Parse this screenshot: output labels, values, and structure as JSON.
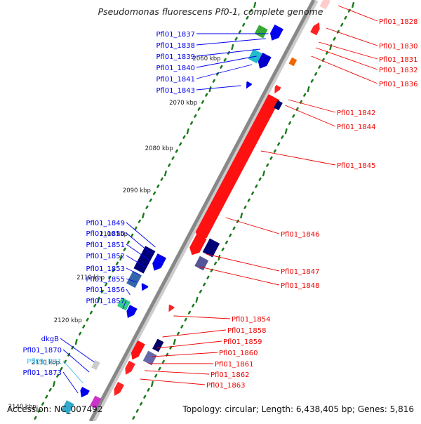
{
  "title": "Pseudomonas fluorescens Pf0-1, complete genome",
  "accession": "Accession: NC_007492",
  "summary": "Topology: circular; Length: 6,438,405 bp; Genes: 5,816",
  "colors": {
    "forward": "#0000ee",
    "reverse": "#ee0000",
    "rna": "#33bbee",
    "tick": "#1a7a1a",
    "backbone": "#888888"
  },
  "scale": [
    "2060 kbp",
    "2070 kbp",
    "2080 kbp",
    "2090 kbp",
    "2100 kbp",
    "2110 kbp",
    "2120 kbp",
    "2130 kbp",
    "2140 kbp"
  ],
  "left_labels": [
    {
      "text": "Pfl01_1837",
      "type": "forward"
    },
    {
      "text": "Pfl01_1838",
      "type": "forward"
    },
    {
      "text": "Pfl01_1839",
      "type": "forward"
    },
    {
      "text": "Pfl01_1840",
      "type": "forward"
    },
    {
      "text": "Pfl01_1841",
      "type": "forward"
    },
    {
      "text": "Pfl01_1843",
      "type": "forward"
    },
    {
      "text": "Pfl01_1849",
      "type": "forward"
    },
    {
      "text": "Pfl01_1850",
      "type": "forward"
    },
    {
      "text": "Pfl01_1851",
      "type": "forward"
    },
    {
      "text": "Pfl01_1852",
      "type": "forward"
    },
    {
      "text": "Pfl01_1853",
      "type": "forward"
    },
    {
      "text": "Pfl01_1855",
      "type": "forward"
    },
    {
      "text": "Pfl01_1856",
      "type": "forward"
    },
    {
      "text": "Pfl01_1857",
      "type": "forward"
    },
    {
      "text": "dkgB",
      "type": "forward"
    },
    {
      "text": "Pfl01_1870",
      "type": "forward"
    },
    {
      "text": "Pfl01_R31",
      "type": "rna"
    },
    {
      "text": "Pfl01_1873",
      "type": "forward"
    }
  ],
  "right_labels": [
    {
      "text": "Pfl01_1828"
    },
    {
      "text": "Pfl01_1830"
    },
    {
      "text": "Pfl01_1831"
    },
    {
      "text": "Pfl01_1832"
    },
    {
      "text": "Pfl01_1836"
    },
    {
      "text": "Pfl01_1842"
    },
    {
      "text": "Pfl01_1844"
    },
    {
      "text": "Pfl01_1845"
    },
    {
      "text": "Pfl01_1846"
    },
    {
      "text": "Pfl01_1847"
    },
    {
      "text": "Pfl01_1848"
    },
    {
      "text": "Pfl01_1854"
    },
    {
      "text": "Pfl01_1858"
    },
    {
      "text": "Pfl01_1859"
    },
    {
      "text": "Pfl01_1860"
    },
    {
      "text": "Pfl01_1861"
    },
    {
      "text": "Pfl01_1862"
    },
    {
      "text": "Pfl01_1863"
    }
  ]
}
